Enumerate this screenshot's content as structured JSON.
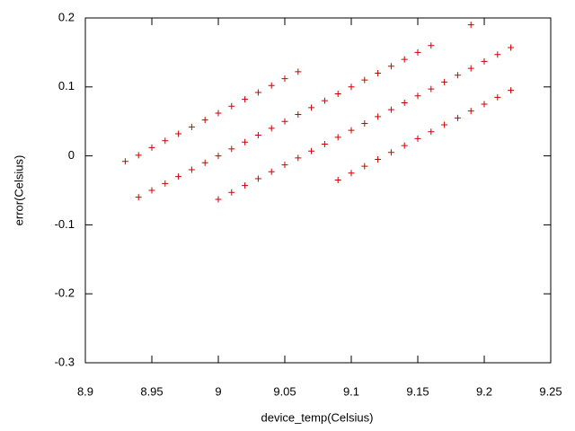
{
  "chart_data": {
    "type": "scatter",
    "xlabel": "device_temp(Celsius)",
    "ylabel": "error(Celsius)",
    "color": "#cc0000",
    "x": [
      8.93,
      8.94,
      8.95,
      8.96,
      8.97,
      8.98,
      8.99,
      9.0,
      9.01,
      9.02,
      9.03,
      9.04,
      9.05,
      9.06,
      8.94,
      8.95,
      8.96,
      8.97,
      8.98,
      8.99,
      9.0,
      9.01,
      9.02,
      9.03,
      9.04,
      9.05,
      9.06,
      9.07,
      9.08,
      9.09,
      9.1,
      9.11,
      9.12,
      9.13,
      9.14,
      9.15,
      9.16,
      9.19,
      9.0,
      9.01,
      9.02,
      9.03,
      9.04,
      9.05,
      9.06,
      9.07,
      9.08,
      9.09,
      9.1,
      9.11,
      9.12,
      9.13,
      9.14,
      9.15,
      9.16,
      9.17,
      9.18,
      9.19,
      9.2,
      9.21,
      9.22,
      9.09,
      9.1,
      9.11,
      9.12,
      9.13,
      9.14,
      9.15,
      9.16,
      9.17,
      9.18,
      9.19,
      9.2,
      9.21,
      9.22
    ],
    "values": [
      -0.008,
      0.001,
      0.012,
      0.022,
      0.032,
      0.042,
      0.052,
      0.062,
      0.072,
      0.082,
      0.092,
      0.102,
      0.112,
      0.122,
      -0.06,
      -0.05,
      -0.04,
      -0.03,
      -0.02,
      -0.01,
      0.0,
      0.01,
      0.02,
      0.03,
      0.04,
      0.05,
      0.06,
      0.07,
      0.08,
      0.09,
      0.1,
      0.11,
      0.12,
      0.13,
      0.14,
      0.15,
      0.16,
      0.19,
      -0.063,
      -0.053,
      -0.043,
      -0.033,
      -0.023,
      -0.013,
      -0.003,
      0.007,
      0.017,
      0.027,
      0.037,
      0.047,
      0.057,
      0.067,
      0.077,
      0.087,
      0.097,
      0.107,
      0.117,
      0.127,
      0.137,
      0.147,
      0.157,
      -0.035,
      -0.025,
      -0.015,
      -0.005,
      0.005,
      0.015,
      0.025,
      0.035,
      0.045,
      0.055,
      0.065,
      0.075,
      0.085,
      0.095
    ],
    "xlim": [
      8.9,
      9.25
    ],
    "xticks": [
      8.9,
      8.95,
      9,
      9.05,
      9.1,
      9.15,
      9.2,
      9.25
    ],
    "ylim": [
      -0.3,
      0.2
    ],
    "yticks": [
      -0.3,
      -0.2,
      -0.1,
      0,
      0.1,
      0.2
    ]
  }
}
